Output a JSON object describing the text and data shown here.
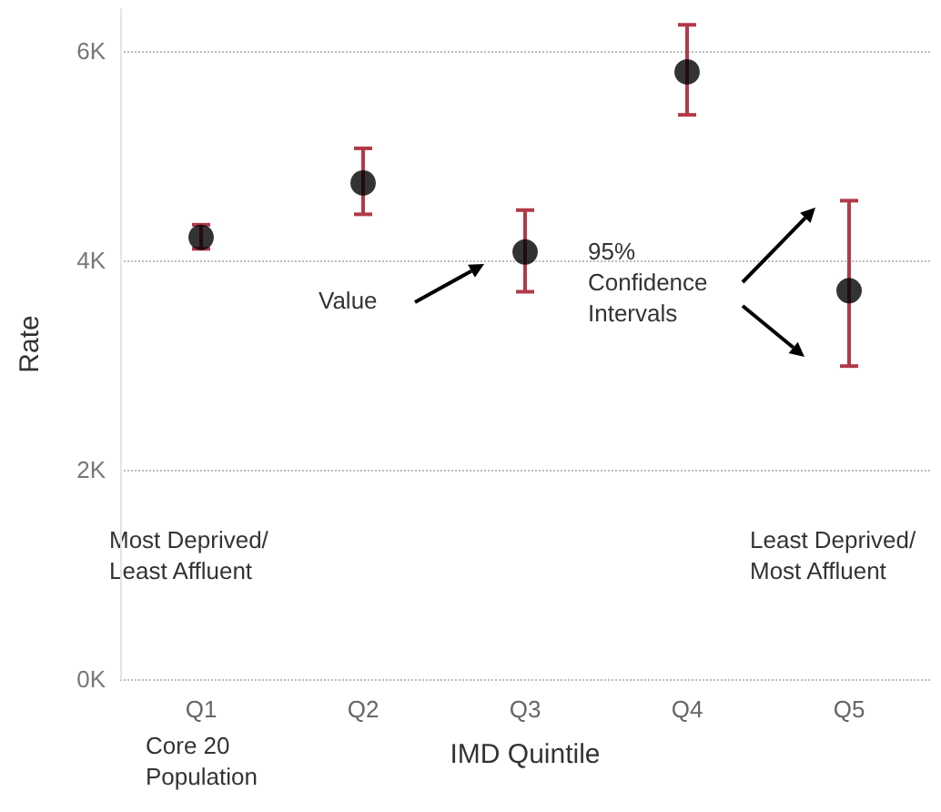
{
  "chart_data": {
    "type": "scatter",
    "xlabel": "IMD Quintile",
    "ylabel": "Rate",
    "categories": [
      "Q1",
      "Q2",
      "Q3",
      "Q4",
      "Q5"
    ],
    "series": [
      {
        "color": "#000000",
        "values": [
          4220,
          4740,
          4080,
          5800,
          3710
        ],
        "errors": [
          [
            4110,
            4340
          ],
          [
            4440,
            5070
          ],
          [
            3700,
            4480
          ],
          [
            5390,
            6250
          ],
          [
            2990,
            4570
          ]
        ]
      }
    ],
    "ylim": [
      0,
      6400
    ],
    "yticks": [
      {
        "value": 0,
        "label": "0K"
      },
      {
        "value": 2000,
        "label": "2K"
      },
      {
        "value": 4000,
        "label": "4K"
      },
      {
        "value": 6000,
        "label": "6K"
      }
    ],
    "grid": "y",
    "marker": "circle",
    "annotations": [
      "Value",
      "95%\nConfidence\nIntervals",
      "Most Deprived/\nLeast Affluent",
      "Least Deprived/\nMost Affluent",
      "Core 20\nPopulation"
    ]
  }
}
